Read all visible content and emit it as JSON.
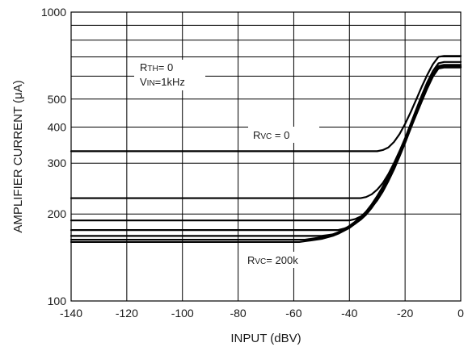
{
  "chart_data": {
    "type": "line",
    "xlabel": "INPUT (dBV)",
    "ylabel": "AMPLIFIER CURRENT (μA)",
    "xlim": [
      -140,
      0
    ],
    "ylim": [
      100,
      1000
    ],
    "y_scale": "log",
    "grid": true,
    "x_ticks": [
      -140,
      -120,
      -100,
      -80,
      -60,
      -40,
      -20,
      0
    ],
    "x_tick_labels": [
      "-140",
      "-120",
      "-100",
      "-80",
      "-60",
      "-40",
      "-20",
      "0"
    ],
    "y_ticks": [
      100,
      200,
      300,
      400,
      500,
      1000
    ],
    "y_tick_labels": [
      "100",
      "200",
      "300",
      "400",
      "500",
      "1000"
    ],
    "y_minor_gridlines": [
      600,
      700,
      800,
      900
    ],
    "annotations": {
      "rth": {
        "main": "R",
        "sub": "TH",
        "rest": "= 0"
      },
      "vin": {
        "main": "V",
        "sub": "IN",
        "rest": "=1kHz"
      },
      "rvc_top": {
        "main": "R",
        "sub": "VC",
        "rest": " = 0"
      },
      "rvc_bottom": {
        "main": "R",
        "sub": "VC",
        "rest": "= 200k"
      }
    },
    "series": [
      {
        "x": [
          -140,
          -30,
          -28,
          -26,
          -24,
          -22,
          -20,
          -18,
          -16,
          -14,
          -12,
          -10,
          -8,
          -6,
          0
        ],
        "y": [
          330,
          330,
          333,
          340,
          355,
          378,
          410,
          450,
          498,
          552,
          607,
          660,
          700,
          705,
          705
        ]
      },
      {
        "x": [
          -140,
          -36,
          -34,
          -32,
          -30,
          -28,
          -26,
          -24,
          -22,
          -20,
          -18,
          -16,
          -14,
          -12,
          -10,
          -8,
          -6,
          0
        ],
        "y": [
          227,
          227,
          229,
          234,
          243,
          256,
          275,
          300,
          330,
          366,
          410,
          460,
          515,
          572,
          625,
          665,
          672,
          672
        ]
      },
      {
        "x": [
          -140,
          -40,
          -38,
          -36,
          -34,
          -32,
          -30,
          -28,
          -26,
          -24,
          -22,
          -20,
          -18,
          -16,
          -14,
          -12,
          -10,
          -8,
          -6,
          0
        ],
        "y": [
          190,
          190,
          192,
          196,
          202,
          211,
          223,
          239,
          260,
          285,
          316,
          352,
          395,
          445,
          500,
          558,
          610,
          650,
          657,
          657
        ]
      },
      {
        "x": [
          -140,
          -44,
          -42,
          -40,
          -38,
          -36,
          -34,
          -32,
          -30,
          -28,
          -26,
          -24,
          -22,
          -20,
          -18,
          -16,
          -14,
          -12,
          -10,
          -8,
          -6,
          0
        ],
        "y": [
          176,
          176,
          178,
          181,
          185,
          191,
          199,
          210,
          224,
          242,
          264,
          290,
          321,
          357,
          398,
          445,
          497,
          552,
          604,
          644,
          650,
          650
        ]
      },
      {
        "x": [
          -140,
          -50,
          -48,
          -46,
          -44,
          -42,
          -40,
          -38,
          -36,
          -34,
          -32,
          -30,
          -28,
          -26,
          -24,
          -22,
          -20,
          -18,
          -16,
          -14,
          -12,
          -10,
          -8,
          -6,
          0
        ],
        "y": [
          168,
          168,
          169,
          170,
          172,
          175,
          179,
          185,
          192,
          201,
          213,
          228,
          246,
          267,
          292,
          322,
          356,
          396,
          441,
          491,
          545,
          598,
          640,
          646,
          646
        ]
      },
      {
        "x": [
          -140,
          -56,
          -54,
          -52,
          -50,
          -48,
          -46,
          -44,
          -42,
          -40,
          -38,
          -36,
          -34,
          -32,
          -30,
          -28,
          -26,
          -24,
          -22,
          -20,
          -18,
          -16,
          -14,
          -12,
          -10,
          -8,
          -6,
          0
        ],
        "y": [
          163,
          163,
          164,
          165,
          166,
          168,
          170,
          173,
          177,
          182,
          188,
          195,
          204,
          216,
          231,
          249,
          270,
          295,
          325,
          359,
          399,
          444,
          494,
          548,
          600,
          640,
          645,
          645
        ]
      },
      {
        "x": [
          -140,
          -60,
          -58,
          -56,
          -54,
          -52,
          -50,
          -48,
          -46,
          -44,
          -42,
          -40,
          -38,
          -36,
          -34,
          -32,
          -30,
          -28,
          -26,
          -24,
          -22,
          -20,
          -18,
          -16,
          -14,
          -12,
          -10,
          -8,
          -6,
          0
        ],
        "y": [
          160,
          160,
          160,
          161,
          162,
          163,
          164,
          166,
          168,
          171,
          175,
          180,
          186,
          193,
          202,
          214,
          229,
          247,
          268,
          293,
          323,
          357,
          397,
          442,
          492,
          546,
          598,
          638,
          643,
          643
        ]
      }
    ]
  }
}
